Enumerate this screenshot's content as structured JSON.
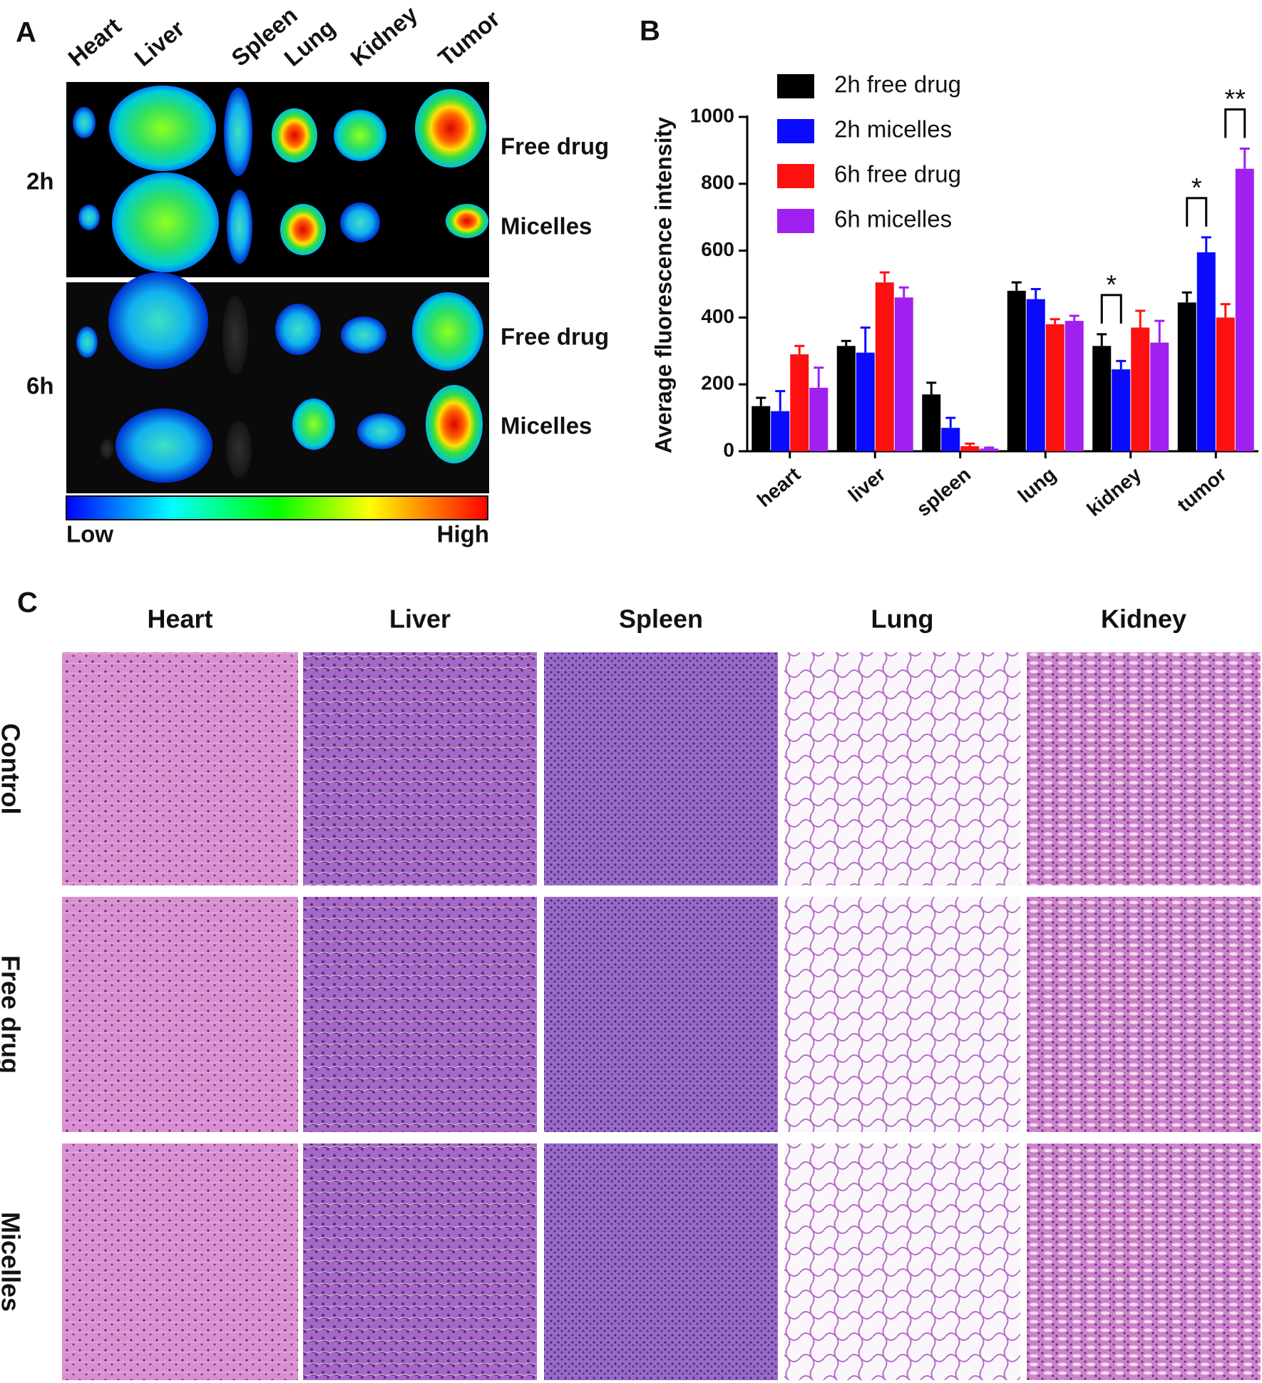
{
  "panel_a": {
    "label": "A",
    "organs": [
      "Heart",
      "Liver",
      "Spleen",
      "Lung",
      "Kidney",
      "Tumor"
    ],
    "times": [
      "2h",
      "6h"
    ],
    "groups": [
      "Free drug",
      "Micelles"
    ],
    "scale": [
      "Low",
      "High"
    ]
  },
  "chart_data": {
    "type": "bar",
    "panel_label": "B",
    "ylabel": "Average fluorescence intensity",
    "categories": [
      "heart",
      "liver",
      "spleen",
      "lung",
      "kidney",
      "tumor"
    ],
    "series": [
      {
        "name": "2h free drug",
        "color": "#000000",
        "values": [
          135,
          315,
          170,
          480,
          315,
          445
        ],
        "errors": [
          25,
          15,
          35,
          25,
          35,
          30
        ]
      },
      {
        "name": "2h micelles",
        "color": "#0a0aff",
        "values": [
          120,
          295,
          70,
          455,
          245,
          595
        ],
        "errors": [
          60,
          75,
          30,
          30,
          25,
          45
        ]
      },
      {
        "name": "6h free drug",
        "color": "#ff1010",
        "values": [
          290,
          505,
          15,
          380,
          370,
          400
        ],
        "errors": [
          25,
          30,
          8,
          15,
          50,
          40
        ]
      },
      {
        "name": "6h micelles",
        "color": "#a020f0",
        "values": [
          190,
          460,
          8,
          390,
          325,
          845
        ],
        "errors": [
          60,
          30,
          3,
          15,
          65,
          60
        ]
      }
    ],
    "ylim": [
      0,
      1000
    ],
    "yticks": [
      0,
      200,
      400,
      600,
      800,
      1000
    ],
    "annotations": [
      {
        "text": "*",
        "category": "kidney",
        "from": "2h free drug",
        "to": "2h micelles"
      },
      {
        "text": "*",
        "category": "tumor",
        "from": "2h free drug",
        "to": "2h micelles"
      },
      {
        "text": "**",
        "category": "tumor",
        "from": "6h free drug",
        "to": "6h micelles"
      }
    ]
  },
  "panel_c": {
    "label": "C",
    "columns": [
      "Heart",
      "Liver",
      "Spleen",
      "Lung",
      "Kidney"
    ],
    "rows": [
      "Control",
      "Free drug",
      "Micelles"
    ]
  }
}
